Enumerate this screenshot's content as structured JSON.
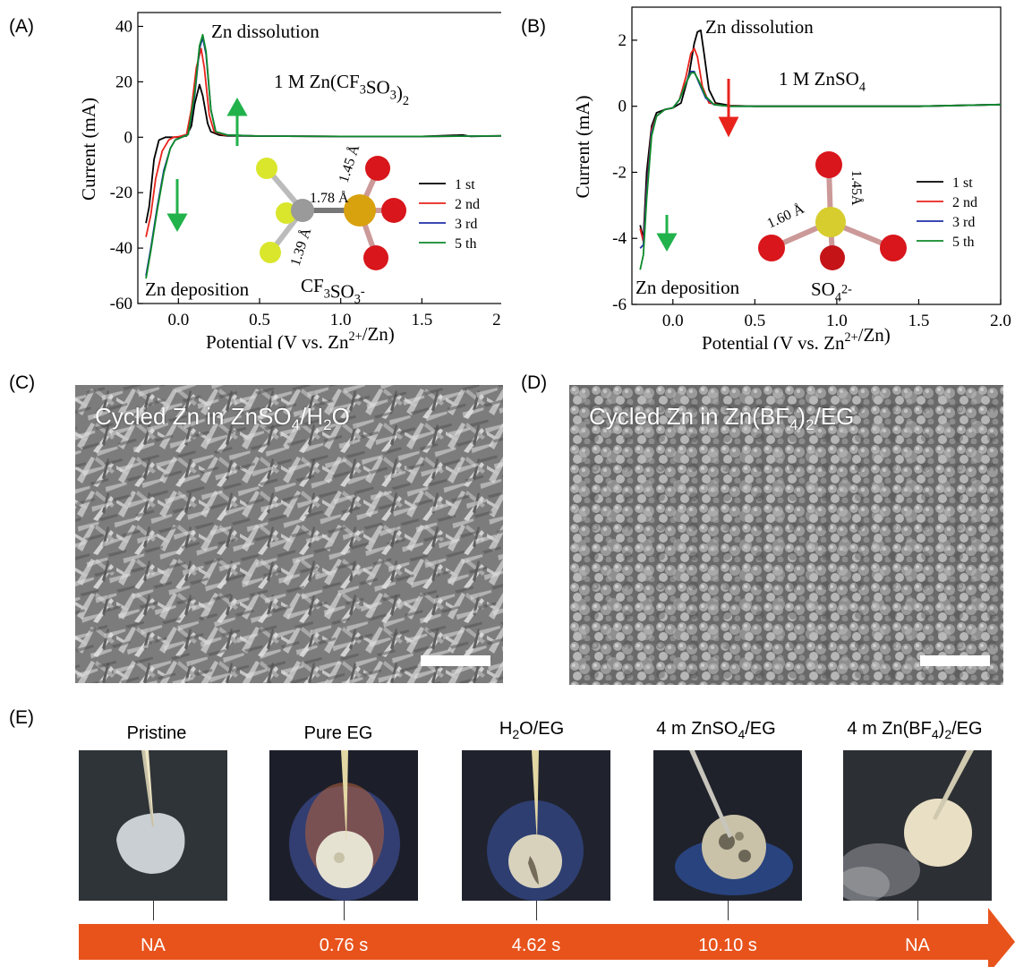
{
  "panels": {
    "a": {
      "label": "(A)",
      "title_process_top": "Zn dissolution",
      "title_process_bottom": "Zn deposition",
      "electrolyte": "1 M Zn(CF",
      "electrolyte_sub1": "3",
      "electrolyte_mid": "SO",
      "electrolyte_sub2": "3",
      "electrolyte_end": ")",
      "electrolyte_sub3": "2",
      "anion_label": "CF",
      "anion_sub1": "3",
      "anion_mid": "SO",
      "anion_sub2": "3",
      "anion_sup": "-",
      "bond_labels": [
        "1.78 Å",
        "1.45 Å",
        "1.39 Å"
      ]
    },
    "b": {
      "label": "(B)",
      "title_process_top": "Zn dissolution",
      "title_process_bottom": "Zn deposition",
      "electrolyte": "1 M ZnSO",
      "electrolyte_sub": "4",
      "anion_label": "SO",
      "anion_sub": "4",
      "anion_sup": "2-",
      "bond_labels": [
        "1.60 Å",
        "1.45Å"
      ]
    },
    "c": {
      "label": "(C)",
      "caption": "Cycled Zn in ZnSO",
      "caption_sub1": "4",
      "caption_mid": "/H",
      "caption_sub2": "2",
      "caption_end": "O"
    },
    "d": {
      "label": "(D)",
      "caption": "Cycled Zn in Zn(BF",
      "caption_sub1": "4",
      "caption_mid": ")",
      "caption_sub2": "2",
      "caption_end": "/EG"
    },
    "e": {
      "label": "(E)",
      "samples": [
        {
          "title": "Pristine",
          "time": "NA"
        },
        {
          "title": "Pure EG",
          "time": "0.76 s"
        },
        {
          "title": "H2O/EG",
          "title_parts": [
            "H",
            "2",
            "O/EG"
          ],
          "time": "4.62 s"
        },
        {
          "title": "4 m ZnSO4/EG",
          "title_parts": [
            "4 m ZnSO",
            "4",
            "/EG"
          ],
          "time": "10.10 s"
        },
        {
          "title": "4 m Zn(BF4)2/EG",
          "title_parts": [
            "4 m Zn(BF",
            "4",
            ")",
            "2",
            "/EG"
          ],
          "time": "NA"
        }
      ],
      "arrow_color": "#e8531c"
    }
  },
  "chart_data": [
    {
      "type": "line",
      "panel": "A",
      "xlabel": "Potential (V vs. Zn2+/Zn)",
      "xlabel_parts": [
        "Potential (V vs. Zn",
        "2+",
        "/Zn)"
      ],
      "ylabel": "Current (mA)",
      "xlim": [
        -0.25,
        2.0
      ],
      "ylim": [
        -60,
        45
      ],
      "x_ticks": [
        "0.0",
        "0.5",
        "1.0",
        "1.5",
        "2.0"
      ],
      "y_ticks": [
        "-60",
        "-40",
        "-20",
        "0",
        "20",
        "40"
      ],
      "x_tick_values": [
        0.0,
        0.5,
        1.0,
        1.5,
        2.0
      ],
      "y_tick_values": [
        -60,
        -40,
        -20,
        0,
        20,
        40
      ],
      "legend_position": "right",
      "series": [
        {
          "name": "1 st",
          "color": "#000000",
          "x": [
            -0.2,
            -0.18,
            -0.15,
            -0.12,
            -0.08,
            0.0,
            0.05,
            0.08,
            0.1,
            0.13,
            0.15,
            0.18,
            0.2,
            0.25,
            0.3,
            0.5,
            1.0,
            1.5,
            1.75,
            1.8,
            2.0
          ],
          "y": [
            -31,
            -25,
            -8,
            -1,
            0,
            0,
            0.5,
            4,
            12,
            19,
            15,
            5,
            2,
            0.8,
            0.5,
            0.4,
            0.3,
            0.3,
            0.8,
            0.3,
            0.5
          ]
        },
        {
          "name": "2 nd",
          "color": "#e8231c",
          "x": [
            -0.2,
            -0.17,
            -0.14,
            -0.1,
            -0.06,
            -0.03,
            0.0,
            0.05,
            0.08,
            0.11,
            0.14,
            0.16,
            0.19,
            0.22,
            0.28,
            0.5,
            1.0,
            1.5,
            2.0
          ],
          "y": [
            -36,
            -28,
            -15,
            -5,
            -1,
            0,
            0.2,
            1,
            10,
            25,
            32,
            25,
            8,
            2,
            0.8,
            0.4,
            0.3,
            0.3,
            0.5
          ]
        },
        {
          "name": "3 rd",
          "color": "#1f2fa8",
          "x": [
            -0.2,
            -0.17,
            -0.13,
            -0.09,
            -0.05,
            -0.02,
            0.02,
            0.06,
            0.1,
            0.13,
            0.15,
            0.17,
            0.2,
            0.23,
            0.3,
            0.5,
            1.0,
            1.5,
            2.0
          ],
          "y": [
            -50,
            -40,
            -25,
            -12,
            -4,
            -1,
            0,
            1,
            15,
            32,
            36,
            30,
            10,
            2,
            0.8,
            0.4,
            0.3,
            0.3,
            0.5
          ]
        },
        {
          "name": "5 th",
          "color": "#0e8a2a",
          "x": [
            -0.2,
            -0.17,
            -0.13,
            -0.09,
            -0.05,
            -0.02,
            0.02,
            0.06,
            0.1,
            0.13,
            0.15,
            0.17,
            0.2,
            0.23,
            0.3,
            0.5,
            1.0,
            1.5,
            2.0
          ],
          "y": [
            -51,
            -41,
            -26,
            -13,
            -4,
            -1,
            0,
            1,
            16,
            33,
            37,
            31,
            10,
            2,
            0.8,
            0.4,
            0.3,
            0.3,
            0.5
          ]
        }
      ]
    },
    {
      "type": "line",
      "panel": "B",
      "xlabel": "Potential (V vs. Zn2+/Zn)",
      "xlabel_parts": [
        "Potential (V vs. Zn",
        "2+",
        "/Zn)"
      ],
      "ylabel": "Current (mA)",
      "xlim": [
        -0.25,
        2.0
      ],
      "ylim": [
        -6,
        3
      ],
      "x_ticks": [
        "0.0",
        "0.5",
        "1.0",
        "1.5",
        "2.0"
      ],
      "y_ticks": [
        "-6",
        "-4",
        "-2",
        "0",
        "2"
      ],
      "x_tick_values": [
        0.0,
        0.5,
        1.0,
        1.5,
        2.0
      ],
      "y_tick_values": [
        -6,
        -4,
        -2,
        0,
        2
      ],
      "legend_position": "right",
      "series": [
        {
          "name": "1 st",
          "color": "#000000",
          "x": [
            -0.2,
            -0.18,
            -0.16,
            -0.13,
            -0.1,
            -0.05,
            0.0,
            0.05,
            0.1,
            0.13,
            0.15,
            0.17,
            0.19,
            0.22,
            0.26,
            0.35,
            0.5,
            1.0,
            1.5,
            2.0
          ],
          "y": [
            -3.6,
            -4.0,
            -2.0,
            -0.6,
            -0.2,
            -0.1,
            -0.05,
            0.1,
            1.0,
            1.9,
            2.25,
            2.3,
            1.6,
            0.5,
            0.1,
            0.02,
            0.0,
            0.0,
            0.0,
            0.05
          ]
        },
        {
          "name": "2 nd",
          "color": "#e8231c",
          "x": [
            -0.2,
            -0.18,
            -0.16,
            -0.13,
            -0.1,
            -0.05,
            0.0,
            0.04,
            0.08,
            0.11,
            0.13,
            0.15,
            0.18,
            0.22,
            0.3,
            0.5,
            1.0,
            1.5,
            2.0
          ],
          "y": [
            -3.7,
            -4.1,
            -2.5,
            -0.7,
            -0.3,
            -0.1,
            -0.05,
            0.2,
            0.9,
            1.6,
            1.75,
            1.5,
            0.6,
            0.1,
            0.02,
            0.0,
            0.0,
            0.0,
            0.05
          ]
        },
        {
          "name": "3 rd",
          "color": "#1f2fa8",
          "x": [
            -0.2,
            -0.18,
            -0.16,
            -0.13,
            -0.1,
            -0.05,
            0.0,
            0.04,
            0.08,
            0.11,
            0.13,
            0.16,
            0.2,
            0.25,
            0.35,
            0.5,
            1.0,
            1.5,
            2.0
          ],
          "y": [
            -4.3,
            -4.2,
            -2.6,
            -0.8,
            -0.3,
            -0.1,
            -0.05,
            0.2,
            0.7,
            1.05,
            1.05,
            0.7,
            0.25,
            0.05,
            0.0,
            0.0,
            0.0,
            0.0,
            0.05
          ]
        },
        {
          "name": "5 th",
          "color": "#0e8a2a",
          "x": [
            -0.2,
            -0.18,
            -0.16,
            -0.13,
            -0.1,
            -0.05,
            0.0,
            0.04,
            0.08,
            0.11,
            0.13,
            0.16,
            0.2,
            0.25,
            0.35,
            0.5,
            1.0,
            1.5,
            2.0
          ],
          "y": [
            -4.95,
            -4.5,
            -2.8,
            -0.9,
            -0.3,
            -0.1,
            -0.05,
            0.2,
            0.7,
            1.0,
            1.02,
            0.75,
            0.3,
            0.05,
            0.0,
            0.0,
            0.0,
            0.0,
            0.05
          ]
        }
      ]
    }
  ]
}
